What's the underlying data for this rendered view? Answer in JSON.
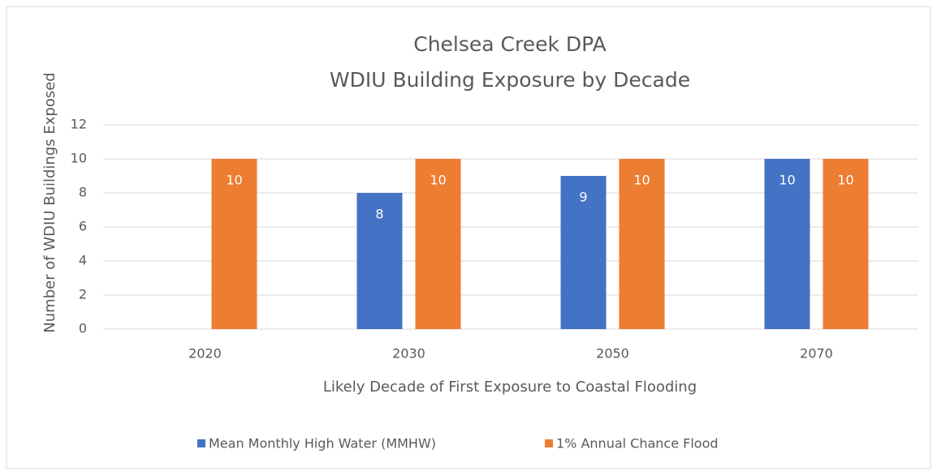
{
  "chart_data": {
    "type": "bar",
    "title": "Chelsea Creek DPA",
    "subtitle": "WDIU Building Exposure by Decade",
    "x_label": "Likely Decade of First Exposure to Coastal Flooding",
    "y_label": "Number of WDIU Buildings Exposed",
    "categories": [
      "2020",
      "2030",
      "2050",
      "2070"
    ],
    "series": [
      {
        "name": "Mean Monthly High Water (MMHW)",
        "color": "#4472c4",
        "values": [
          null,
          8,
          9,
          10
        ]
      },
      {
        "name": "1% Annual Chance Flood",
        "color": "#ed7d31",
        "values": [
          10,
          10,
          10,
          10
        ]
      }
    ],
    "ylim": [
      0,
      12
    ],
    "yticks": [
      0,
      2,
      4,
      6,
      8,
      10,
      12
    ],
    "grid": true,
    "legend": "bottom"
  }
}
